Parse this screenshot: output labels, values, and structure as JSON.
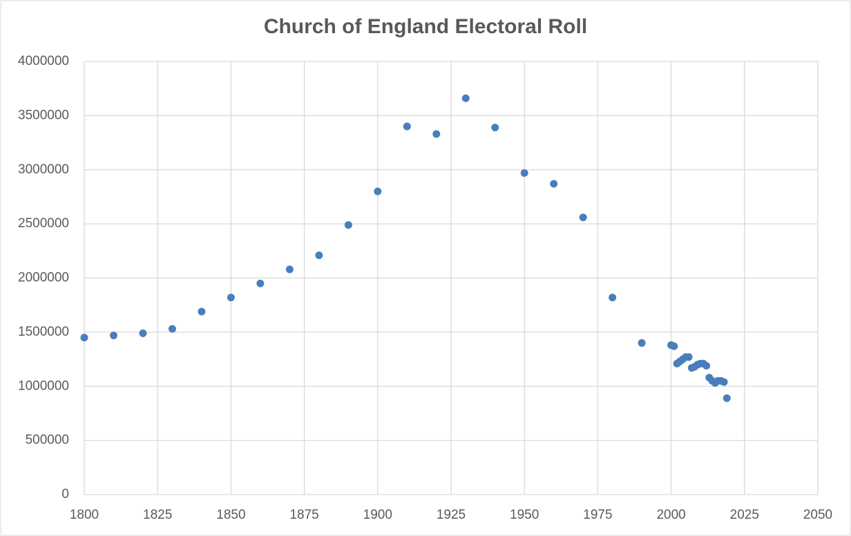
{
  "chart_data": {
    "type": "scatter",
    "title": "Church of England Electoral Roll",
    "color": "#4a7ebb",
    "grid": true,
    "x": [
      1800,
      1810,
      1820,
      1830,
      1840,
      1850,
      1860,
      1870,
      1880,
      1890,
      1900,
      1910,
      1920,
      1930,
      1940,
      1950,
      1960,
      1970,
      1980,
      1990,
      2000,
      2001,
      2002,
      2003,
      2004,
      2005,
      2006,
      2007,
      2008,
      2009,
      2010,
      2011,
      2012,
      2013,
      2014,
      2015,
      2016,
      2017,
      2018,
      2019
    ],
    "values": [
      1450000,
      1470000,
      1490000,
      1530000,
      1690000,
      1820000,
      1950000,
      2080000,
      2210000,
      2490000,
      2800000,
      3400000,
      3330000,
      3660000,
      3390000,
      2970000,
      2870000,
      2560000,
      1820000,
      1400000,
      1380000,
      1370000,
      1210000,
      1230000,
      1250000,
      1270000,
      1270000,
      1170000,
      1180000,
      1200000,
      1210000,
      1210000,
      1190000,
      1080000,
      1050000,
      1030000,
      1050000,
      1050000,
      1040000,
      890000
    ],
    "xlim": [
      1800,
      2050
    ],
    "xticks": [
      1800,
      1825,
      1850,
      1875,
      1900,
      1925,
      1950,
      1975,
      2000,
      2025,
      2050
    ],
    "ylim": [
      0,
      4000000
    ],
    "yticks": [
      0,
      500000,
      1000000,
      1500000,
      2000000,
      2500000,
      3000000,
      3500000,
      4000000
    ]
  }
}
